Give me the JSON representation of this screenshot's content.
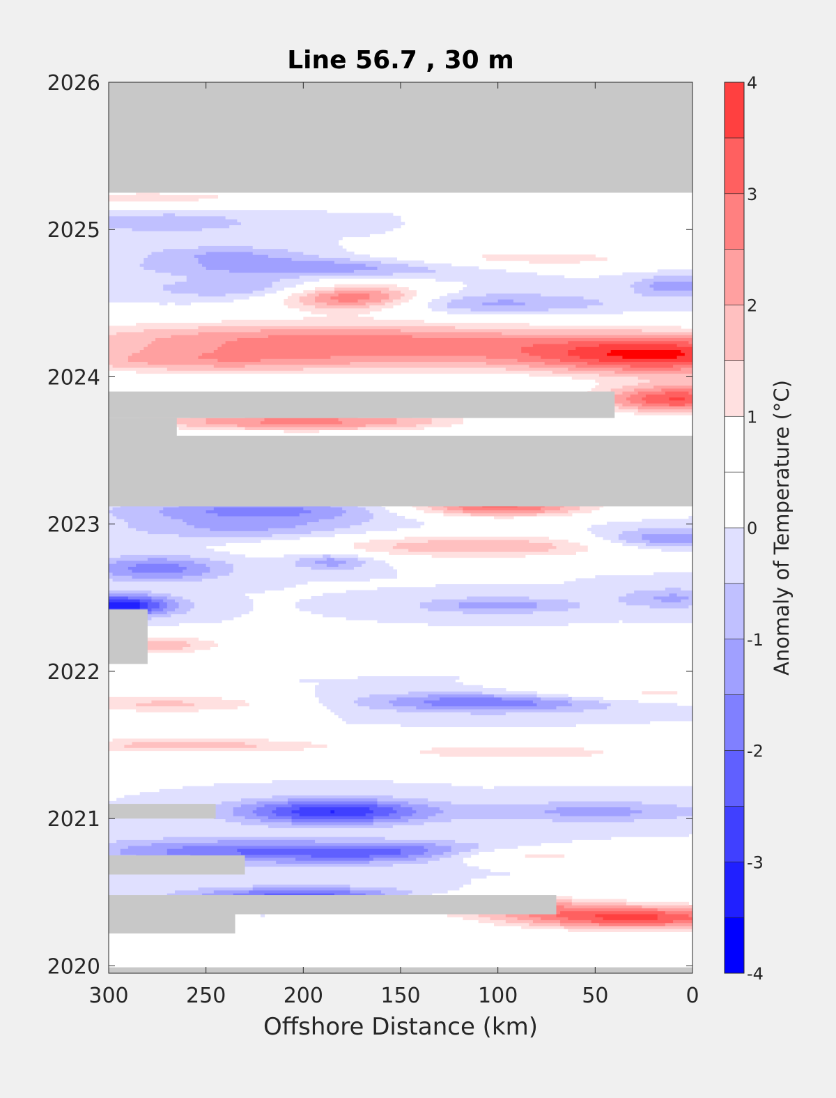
{
  "chart_data": {
    "type": "heatmap",
    "title": "Line 56.7 , 30 m",
    "xlabel": "Offshore Distance (km)",
    "ylabel": "",
    "xlim": [
      300,
      0
    ],
    "ylim": [
      2019.95,
      2026
    ],
    "x_ticks": [
      "300",
      "250",
      "200",
      "150",
      "100",
      "50",
      "0"
    ],
    "x_tick_values": [
      300,
      250,
      200,
      150,
      100,
      50,
      0
    ],
    "y_ticks": [
      "2020",
      "2021",
      "2022",
      "2023",
      "2024",
      "2025",
      "2026"
    ],
    "y_tick_values": [
      2020,
      2021,
      2022,
      2023,
      2024,
      2025,
      2026
    ],
    "colorbar": {
      "label": "Anomaly of Temperature (°C)",
      "ticks": [
        "-4",
        "-3",
        "-2",
        "-1",
        "0",
        "1",
        "2",
        "3",
        "4"
      ],
      "tick_values": [
        -4,
        -3,
        -2,
        -1,
        0,
        1,
        2,
        3,
        4
      ],
      "levels": [
        -4,
        -3.5,
        -3,
        -2.5,
        -2,
        -1.5,
        -1,
        -0.5,
        0,
        0.5,
        1,
        1.5,
        2,
        2.5,
        3,
        3.5,
        4
      ],
      "colors": [
        "#0000ff",
        "#2020ff",
        "#4040ff",
        "#6060ff",
        "#8080ff",
        "#a0a0ff",
        "#c0c0ff",
        "#e0e0ff",
        "#ffffff",
        "#ffffff",
        "#ffe0e0",
        "#ffc0c0",
        "#ffa0a0",
        "#ff8080",
        "#ff6060",
        "#ff4040",
        "#ff0000"
      ],
      "nodata_color": "#c8c8c8"
    },
    "nodata_periods": [
      {
        "x_from": 300,
        "x_to": 0,
        "t_from": 2025.25,
        "t_to": 2026.0
      },
      {
        "x_from": 300,
        "x_to": 0,
        "t_from": 2023.12,
        "t_to": 2023.6
      },
      {
        "x_from": 300,
        "x_to": 40,
        "t_from": 2023.72,
        "t_to": 2023.9
      },
      {
        "x_from": 300,
        "x_to": 265,
        "t_from": 2023.6,
        "t_to": 2023.72
      },
      {
        "x_from": 300,
        "x_to": 280,
        "t_from": 2022.05,
        "t_to": 2022.42
      },
      {
        "x_from": 300,
        "x_to": 245,
        "t_from": 2021.0,
        "t_to": 2021.1
      },
      {
        "x_from": 300,
        "x_to": 230,
        "t_from": 2020.62,
        "t_to": 2020.75
      },
      {
        "x_from": 300,
        "x_to": 70,
        "t_from": 2020.35,
        "t_to": 2020.48
      },
      {
        "x_from": 300,
        "x_to": 235,
        "t_from": 2020.22,
        "t_to": 2020.35
      },
      {
        "x_from": 300,
        "x_to": 0,
        "t_from": 2019.95,
        "t_to": 2019.99
      }
    ],
    "anomaly_features": [
      {
        "x": 175,
        "t": 2024.55,
        "sx": 28,
        "st": 0.07,
        "value": 3.6
      },
      {
        "x": 200,
        "t": 2024.27,
        "sx": 110,
        "st": 0.09,
        "value": 2.0
      },
      {
        "x": 100,
        "t": 2024.15,
        "sx": 130,
        "st": 0.1,
        "value": 1.7
      },
      {
        "x": 15,
        "t": 2024.15,
        "sx": 45,
        "st": 0.1,
        "value": 2.6
      },
      {
        "x": 8,
        "t": 2023.85,
        "sx": 30,
        "st": 0.07,
        "value": 3.5
      },
      {
        "x": 260,
        "t": 2024.1,
        "sx": 60,
        "st": 0.06,
        "value": 1.3
      },
      {
        "x": 210,
        "t": 2024.6,
        "sx": 45,
        "st": 0.05,
        "value": -1.3
      },
      {
        "x": 110,
        "t": 2024.5,
        "sx": 50,
        "st": 0.05,
        "value": -1.2
      },
      {
        "x": 190,
        "t": 2024.75,
        "sx": 60,
        "st": 0.05,
        "value": -1.6
      },
      {
        "x": 90,
        "t": 2024.8,
        "sx": 60,
        "st": 0.05,
        "value": 1.4
      },
      {
        "x": 270,
        "t": 2025.05,
        "sx": 35,
        "st": 0.05,
        "value": -0.9
      },
      {
        "x": 280,
        "t": 2025.22,
        "sx": 60,
        "st": 0.04,
        "value": 1.2
      },
      {
        "x": 240,
        "t": 2024.84,
        "sx": 30,
        "st": 0.04,
        "value": -0.9
      },
      {
        "x": 230,
        "t": 2023.7,
        "sx": 45,
        "st": 0.05,
        "value": 2.1
      },
      {
        "x": 160,
        "t": 2023.7,
        "sx": 40,
        "st": 0.05,
        "value": 1.6
      },
      {
        "x": 100,
        "t": 2023.12,
        "sx": 35,
        "st": 0.05,
        "value": 3.2
      },
      {
        "x": 220,
        "t": 2023.1,
        "sx": 50,
        "st": 0.05,
        "value": -1.6
      },
      {
        "x": 110,
        "t": 2022.85,
        "sx": 60,
        "st": 0.06,
        "value": 2.0
      },
      {
        "x": 275,
        "t": 2022.7,
        "sx": 25,
        "st": 0.06,
        "value": -1.8
      },
      {
        "x": 295,
        "t": 2022.45,
        "sx": 20,
        "st": 0.05,
        "value": -3.5
      },
      {
        "x": 280,
        "t": 2022.18,
        "sx": 30,
        "st": 0.05,
        "value": 2.0
      },
      {
        "x": 15,
        "t": 2022.9,
        "sx": 25,
        "st": 0.05,
        "value": -1.7
      },
      {
        "x": 185,
        "t": 2022.75,
        "sx": 15,
        "st": 0.04,
        "value": -1.4
      },
      {
        "x": 100,
        "t": 2022.45,
        "sx": 30,
        "st": 0.04,
        "value": -1.3
      },
      {
        "x": 10,
        "t": 2022.5,
        "sx": 20,
        "st": 0.05,
        "value": -1.1
      },
      {
        "x": 105,
        "t": 2021.8,
        "sx": 45,
        "st": 0.05,
        "value": -2.2
      },
      {
        "x": 270,
        "t": 2021.78,
        "sx": 45,
        "st": 0.05,
        "value": 1.6
      },
      {
        "x": 40,
        "t": 2021.85,
        "sx": 60,
        "st": 0.04,
        "value": 1.3
      },
      {
        "x": 260,
        "t": 2021.5,
        "sx": 55,
        "st": 0.04,
        "value": 1.8
      },
      {
        "x": 90,
        "t": 2021.45,
        "sx": 60,
        "st": 0.05,
        "value": 1.3
      },
      {
        "x": 185,
        "t": 2021.05,
        "sx": 35,
        "st": 0.06,
        "value": -3.0
      },
      {
        "x": 150,
        "t": 2020.77,
        "sx": 40,
        "st": 0.05,
        "value": -2.2
      },
      {
        "x": 240,
        "t": 2020.78,
        "sx": 50,
        "st": 0.06,
        "value": -1.8
      },
      {
        "x": 95,
        "t": 2020.75,
        "sx": 40,
        "st": 0.04,
        "value": 1.6
      },
      {
        "x": 200,
        "t": 2020.48,
        "sx": 40,
        "st": 0.04,
        "value": -2.3
      },
      {
        "x": 30,
        "t": 2020.33,
        "sx": 50,
        "st": 0.06,
        "value": 3.6
      },
      {
        "x": 100,
        "t": 2020.42,
        "sx": 40,
        "st": 0.05,
        "value": 1.8
      },
      {
        "x": 80,
        "t": 2020.1,
        "sx": 80,
        "st": 0.05,
        "value": 1.0
      },
      {
        "x": 50,
        "t": 2021.05,
        "sx": 40,
        "st": 0.05,
        "value": -1.2
      },
      {
        "x": 230,
        "t": 2022.98,
        "sx": 45,
        "st": 0.06,
        "value": -1.1
      },
      {
        "x": 10,
        "t": 2024.62,
        "sx": 15,
        "st": 0.05,
        "value": -1.3
      }
    ]
  }
}
